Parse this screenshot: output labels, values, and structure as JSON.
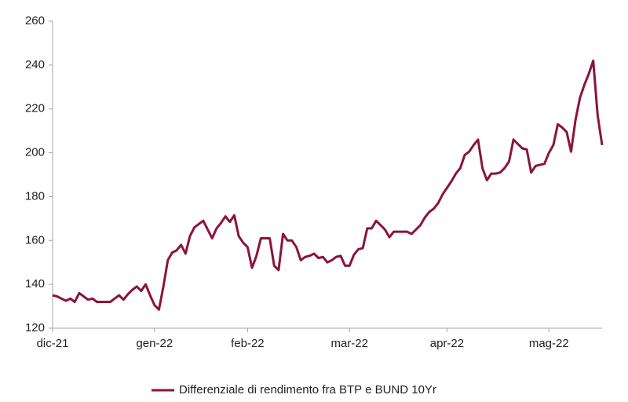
{
  "chart_data": {
    "type": "line",
    "categories": [
      "dic-21",
      null,
      null,
      null,
      null,
      null,
      null,
      null,
      null,
      null,
      null,
      null,
      null,
      null,
      null,
      null,
      null,
      null,
      null,
      null,
      null,
      null,
      null,
      "gen-22",
      null,
      null,
      null,
      null,
      null,
      null,
      null,
      null,
      null,
      null,
      null,
      null,
      null,
      null,
      null,
      null,
      null,
      null,
      null,
      null,
      "feb-22",
      null,
      null,
      null,
      null,
      null,
      null,
      null,
      null,
      null,
      null,
      null,
      null,
      null,
      null,
      null,
      null,
      null,
      null,
      null,
      null,
      null,
      null,
      "mar-22",
      null,
      null,
      null,
      null,
      null,
      null,
      null,
      null,
      null,
      null,
      null,
      null,
      null,
      null,
      null,
      null,
      null,
      null,
      null,
      null,
      null,
      "apr-22",
      null,
      null,
      null,
      null,
      null,
      null,
      null,
      null,
      null,
      null,
      null,
      null,
      null,
      null,
      null,
      null,
      null,
      null,
      null,
      null,
      null,
      null,
      "mag-22",
      null,
      null,
      null,
      null,
      null,
      null,
      null,
      null,
      null,
      null,
      null,
      null
    ],
    "series": [
      {
        "name": "Differenziale di rendimento fra BTP e BUND 10Yr",
        "color": "#8a1538",
        "values": [
          135,
          134.5,
          133.5,
          132.5,
          133.5,
          132,
          136,
          134.5,
          133,
          133.5,
          132,
          132,
          132,
          132,
          133.5,
          135,
          133,
          135.5,
          137.5,
          139,
          137,
          140,
          135,
          130.5,
          128.5,
          139,
          151,
          154.5,
          155.5,
          158,
          154,
          162,
          166,
          167.5,
          169,
          165,
          161,
          165.5,
          168,
          171,
          168.5,
          171.5,
          162,
          159,
          157,
          147.5,
          153,
          161,
          161,
          161,
          148.5,
          146.5,
          163,
          160,
          160,
          157,
          151,
          152.5,
          153,
          154,
          152,
          152.5,
          150,
          151,
          152.5,
          153,
          148.5,
          148.5,
          153.5,
          156,
          156.5,
          165.5,
          165.5,
          169,
          167,
          165,
          161.5,
          164,
          164,
          164,
          164,
          163,
          165,
          167,
          170.5,
          173,
          174.5,
          177,
          181,
          184,
          187,
          190.5,
          193,
          199,
          200.5,
          203.5,
          206,
          193,
          187.5,
          190.5,
          190.5,
          191,
          193,
          196,
          206,
          204,
          202,
          201.5,
          191,
          194,
          194.5,
          195,
          200,
          203.5,
          213,
          211.5,
          209.5,
          200.5,
          215,
          225,
          231,
          236,
          242,
          217,
          203.5
        ]
      }
    ],
    "ylim": [
      120,
      260
    ],
    "yticks": [
      120,
      140,
      160,
      180,
      200,
      220,
      240,
      260
    ],
    "legend": "bottom"
  }
}
